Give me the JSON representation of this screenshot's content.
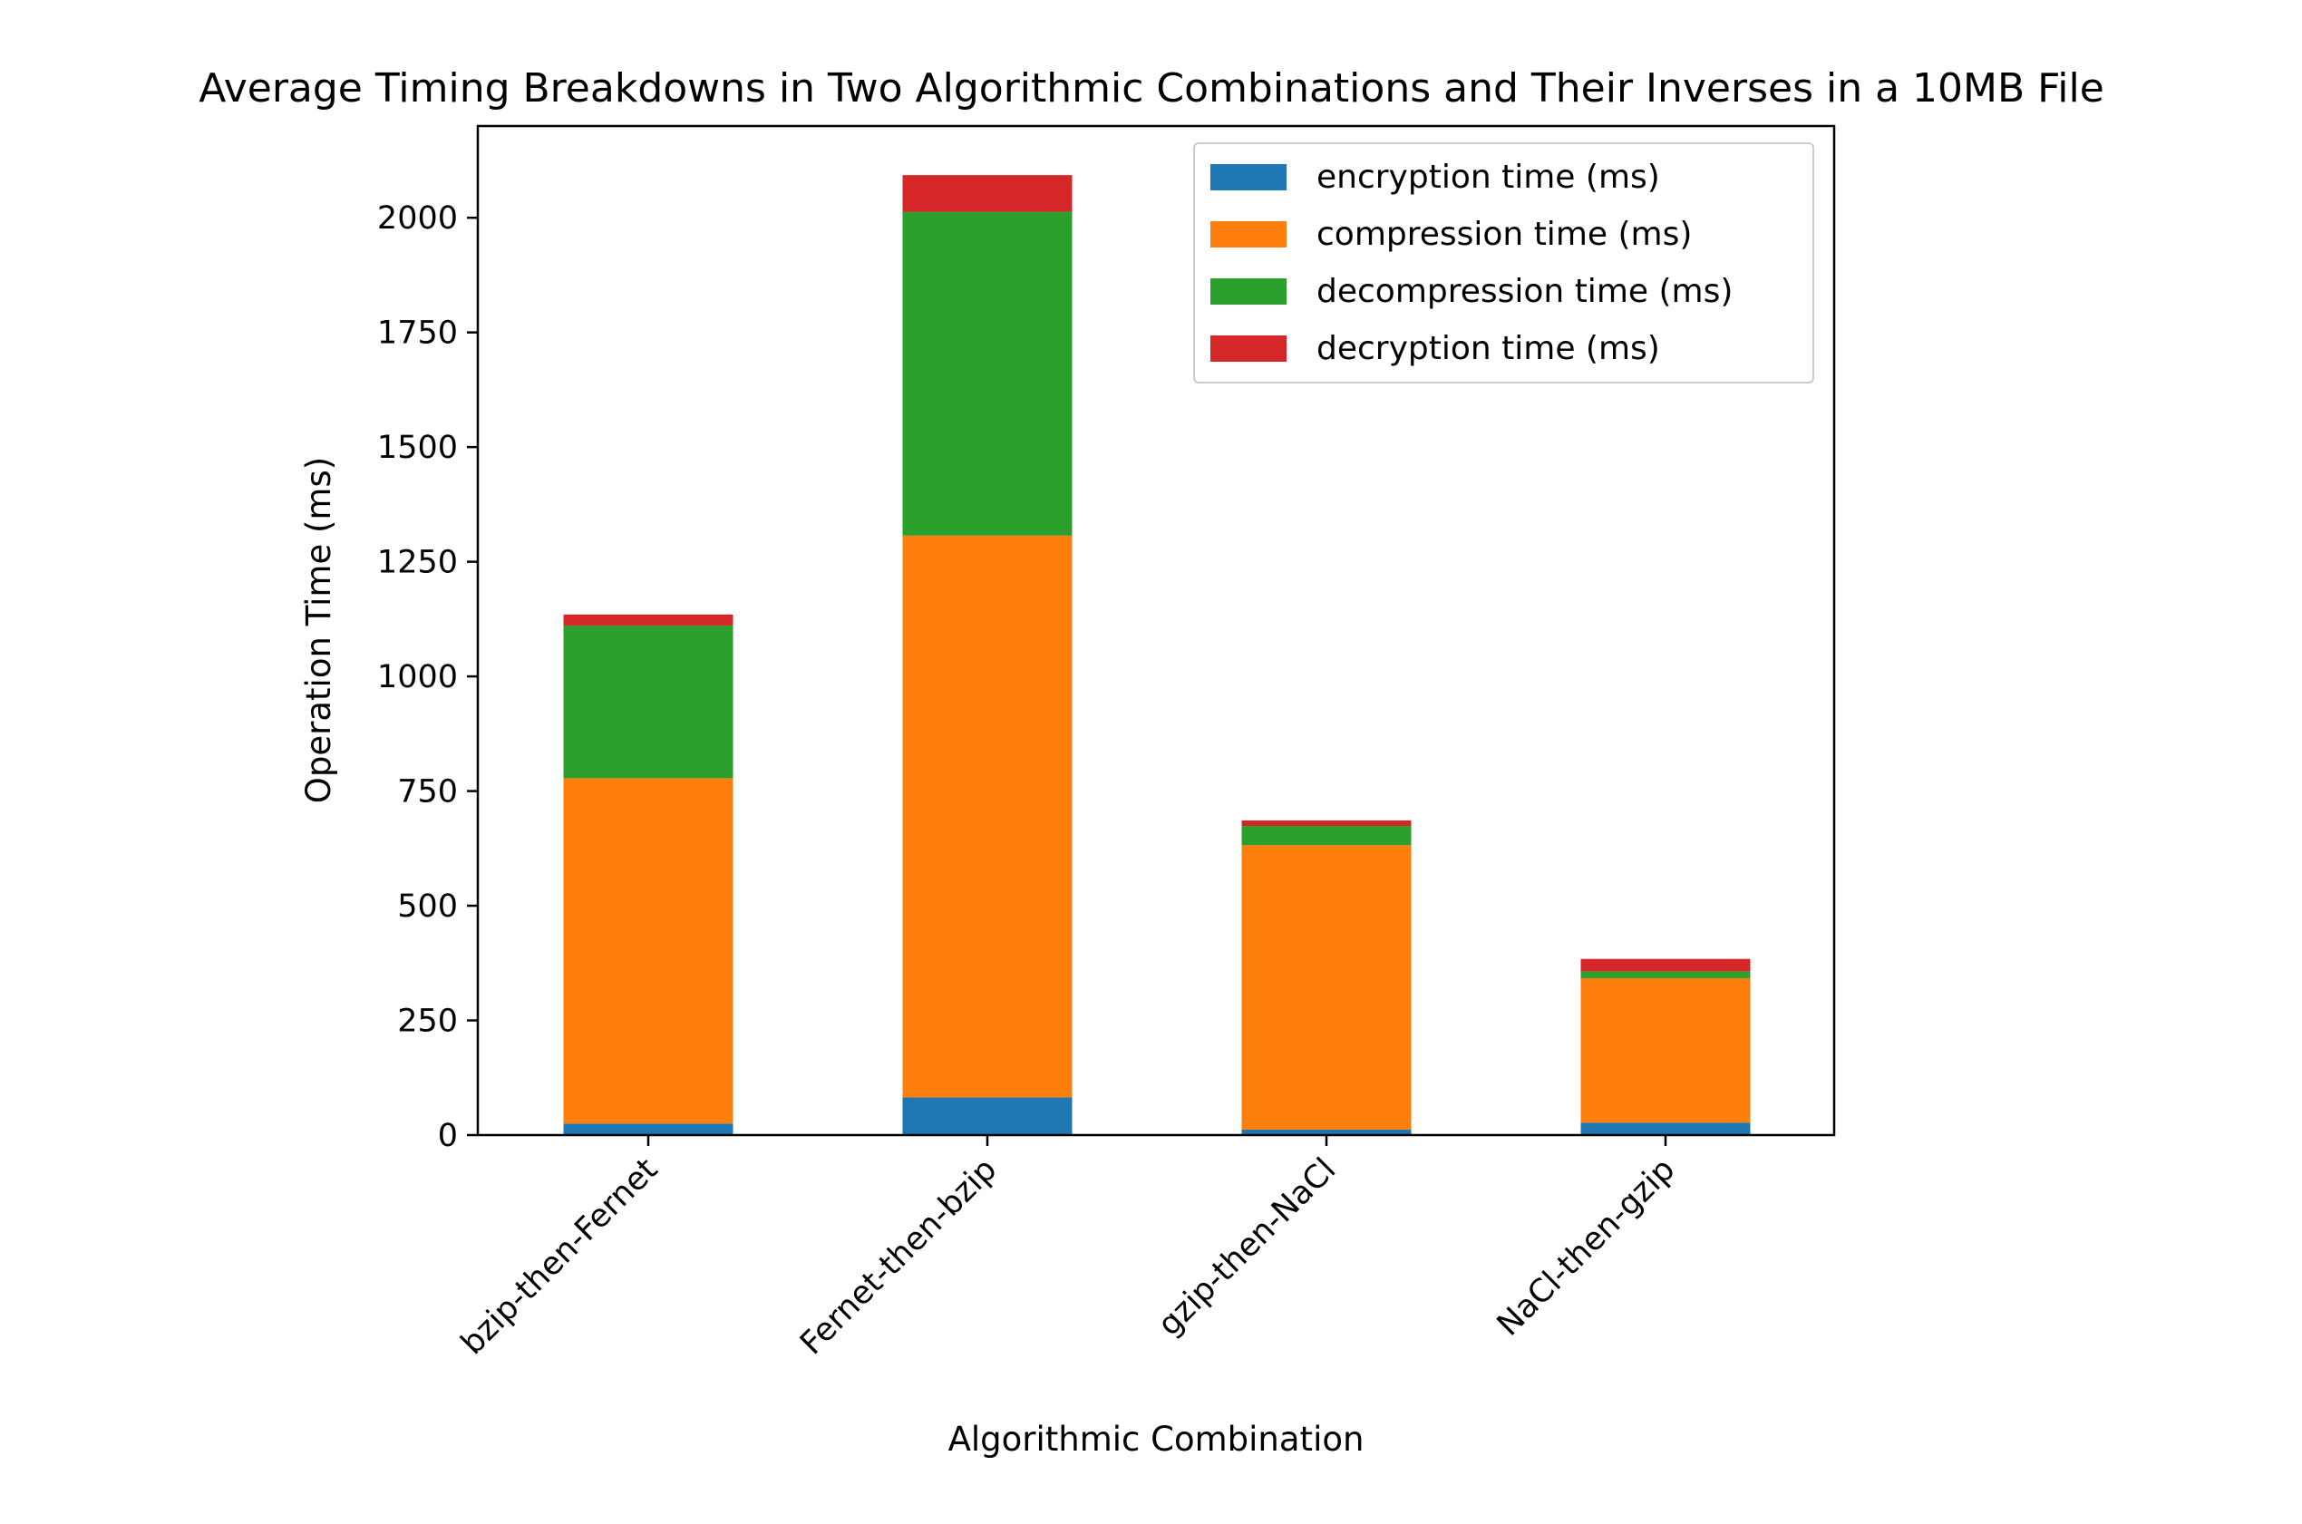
{
  "chart_data": {
    "type": "bar",
    "stacked": true,
    "title": "Average Timing Breakdowns in Two Algorithmic Combinations and Their Inverses in a 10MB File",
    "xlabel": "Algorithmic Combination",
    "ylabel": "Operation Time (ms)",
    "categories": [
      "bzip-then-Fernet",
      "Fernet-then-bzip",
      "gzip-then-NaCl",
      "NaCl-then-gzip"
    ],
    "ylim": [
      0,
      2200
    ],
    "yticks": [
      0,
      250,
      500,
      750,
      1000,
      1250,
      1500,
      1750,
      2000
    ],
    "grid": false,
    "legend_position": "top-right",
    "series": [
      {
        "name": "encryption time (ms)",
        "color": "#1f77b4",
        "values": [
          25,
          82,
          12,
          27
        ]
      },
      {
        "name": "compression time (ms)",
        "color": "#ff7f0e",
        "values": [
          753,
          1225,
          620,
          315
        ]
      },
      {
        "name": "decompression time (ms)",
        "color": "#2ca02c",
        "values": [
          333,
          706,
          42,
          15
        ]
      },
      {
        "name": "decryption time (ms)",
        "color": "#d62728",
        "values": [
          24,
          80,
          12,
          27
        ]
      }
    ]
  }
}
